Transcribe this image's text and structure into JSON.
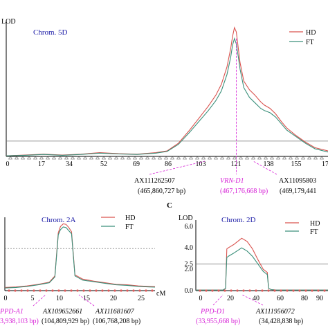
{
  "chart_data": [
    {
      "type": "line",
      "panel": "",
      "chrom_label": "Chrom. 5D",
      "ylabel": "LOD",
      "xlabel": "",
      "x_ticks": [
        "0",
        "17",
        "34",
        "52",
        "69",
        "86",
        "103",
        "121",
        "138",
        "155",
        "17"
      ],
      "xlim": [
        0,
        172
      ],
      "threshold_shown": true,
      "legend": "top-right",
      "series": [
        {
          "name": "HD",
          "color": "#d9534f",
          "x": [
            0,
            10,
            20,
            30,
            40,
            50,
            60,
            70,
            80,
            86,
            92,
            98,
            103,
            108,
            112,
            115,
            118,
            120,
            121,
            122,
            123,
            124,
            125,
            127,
            130,
            133,
            136,
            138,
            141,
            144,
            147,
            150,
            155,
            160,
            165,
            172
          ],
          "y": [
            0.05,
            0.12,
            0.2,
            0.12,
            0.2,
            0.35,
            0.25,
            0.2,
            0.35,
            0.5,
            1.2,
            2.4,
            3.5,
            4.6,
            5.6,
            6.6,
            8.2,
            9.9,
            11.0,
            11.8,
            11.4,
            10.0,
            8.6,
            6.9,
            6.1,
            5.6,
            5.0,
            4.7,
            4.4,
            3.9,
            3.2,
            2.6,
            1.9,
            1.3,
            0.8,
            0.5
          ]
        },
        {
          "name": "FT",
          "color": "#3a8f7a",
          "x": [
            0,
            10,
            20,
            30,
            40,
            50,
            60,
            70,
            80,
            86,
            92,
            98,
            103,
            108,
            112,
            115,
            118,
            120,
            121,
            122,
            123,
            124,
            125,
            127,
            130,
            133,
            136,
            138,
            141,
            144,
            147,
            150,
            155,
            160,
            165,
            172
          ],
          "y": [
            0.05,
            0.1,
            0.18,
            0.1,
            0.18,
            0.3,
            0.22,
            0.18,
            0.3,
            0.45,
            1.1,
            2.2,
            3.2,
            4.2,
            5.1,
            6.0,
            7.5,
            9.1,
            10.2,
            10.8,
            10.3,
            9.2,
            8.0,
            6.3,
            5.4,
            4.9,
            4.4,
            4.2,
            4.0,
            3.6,
            3.0,
            2.4,
            1.8,
            1.2,
            0.7,
            0.4
          ]
        }
      ],
      "threshold": 1.4,
      "ylim": [
        0,
        12.3
      ],
      "markers": [
        {
          "name": "AX111262507",
          "pos": "(465,860,727 bp)",
          "cm": 114,
          "emph": false
        },
        {
          "name": "VRN-D1",
          "pos": "(467,176,668 bp)",
          "cm": 123,
          "emph": true
        },
        {
          "name": "AX11095803",
          "pos": "(469,179,441",
          "cm": 131,
          "emph": false
        }
      ]
    },
    {
      "type": "line",
      "panel": "",
      "chrom_label": "Chrom. 2A",
      "ylabel": "",
      "xlabel": "cM",
      "x_ticks": [
        "0",
        "5",
        "10",
        "15",
        "20",
        "25"
      ],
      "xlim": [
        0,
        27
      ],
      "legend": "top-right",
      "series": [
        {
          "name": "HD",
          "color": "#d9534f",
          "x": [
            0,
            2,
            4,
            6,
            8,
            9,
            9.6,
            10,
            10.5,
            11,
            11.5,
            12,
            12.6,
            14,
            16,
            18,
            20,
            22,
            24,
            26,
            27
          ],
          "y": [
            0.3,
            0.35,
            0.45,
            0.6,
            0.8,
            1.4,
            5.5,
            6.1,
            6.35,
            6.3,
            6.0,
            5.6,
            1.5,
            1.1,
            0.9,
            0.75,
            0.6,
            0.55,
            0.45,
            0.4,
            0.38
          ]
        },
        {
          "name": "FT",
          "color": "#3a8f7a",
          "x": [
            0,
            2,
            4,
            6,
            8,
            9,
            9.6,
            10,
            10.5,
            11,
            11.5,
            12,
            12.6,
            14,
            16,
            18,
            20,
            22,
            24,
            26,
            27
          ],
          "y": [
            0.25,
            0.3,
            0.4,
            0.55,
            0.75,
            1.3,
            5.3,
            5.8,
            6.05,
            6.0,
            5.7,
            5.4,
            1.4,
            1.0,
            0.85,
            0.7,
            0.55,
            0.5,
            0.4,
            0.35,
            0.33
          ]
        }
      ],
      "threshold": 4.0,
      "ylim": [
        0,
        7.5
      ],
      "markers": [
        {
          "name": "PPD-A1",
          "pos": "3,938,103 bp)",
          "cm": 8,
          "emph": true
        },
        {
          "name": "AX109652661",
          "pos": "(104,809,929 bp)",
          "cm": 10,
          "emph": false
        },
        {
          "name": "AX111681607",
          "pos": "(106,768,208 bp)",
          "cm": 12.4,
          "emph": false
        }
      ]
    },
    {
      "type": "line",
      "panel": "C",
      "chrom_label": "Chrom. 2D",
      "ylabel": "LOD",
      "xlabel": "",
      "y_ticks": [
        "0.0",
        "2.0",
        "2.5",
        "4.0",
        "6.0"
      ],
      "y_tick_values": [
        0.0,
        2.0,
        2.5,
        4.0,
        6.0
      ],
      "x_ticks": [
        "0",
        "20",
        "40",
        "60",
        "80",
        "90"
      ],
      "xlim": [
        0,
        98
      ],
      "ylim": [
        0,
        6.6
      ],
      "legend": "top-right",
      "series": [
        {
          "name": "HD",
          "color": "#d9534f",
          "x": [
            0,
            10,
            20,
            22,
            23,
            24,
            28,
            34,
            38,
            42,
            46,
            50,
            53,
            54,
            56,
            60,
            70,
            80,
            90,
            98
          ],
          "y": [
            0.05,
            0.05,
            0.05,
            0.2,
            3.9,
            4.0,
            4.3,
            4.9,
            4.6,
            3.9,
            2.9,
            2.0,
            1.7,
            0.2,
            0.1,
            0.05,
            0.05,
            0.05,
            0.05,
            0.05
          ]
        },
        {
          "name": "FT",
          "color": "#3a8f7a",
          "x": [
            0,
            10,
            20,
            22,
            23,
            24,
            28,
            34,
            38,
            42,
            46,
            50,
            53,
            54,
            56,
            60,
            70,
            80,
            90,
            98
          ],
          "y": [
            0.05,
            0.05,
            0.05,
            0.2,
            3.1,
            3.2,
            3.5,
            4.0,
            3.7,
            3.2,
            2.5,
            1.8,
            1.5,
            0.2,
            0.1,
            0.05,
            0.05,
            0.05,
            0.05,
            0.05
          ]
        }
      ],
      "threshold": 2.5,
      "markers": [
        {
          "name": "PPD-D1",
          "pos": "(33,955,668 bp)",
          "cm": 23,
          "emph": true
        },
        {
          "name": "AX111956072",
          "pos": "(34,428,838 bp)",
          "cm": 34,
          "emph": false
        }
      ]
    }
  ]
}
